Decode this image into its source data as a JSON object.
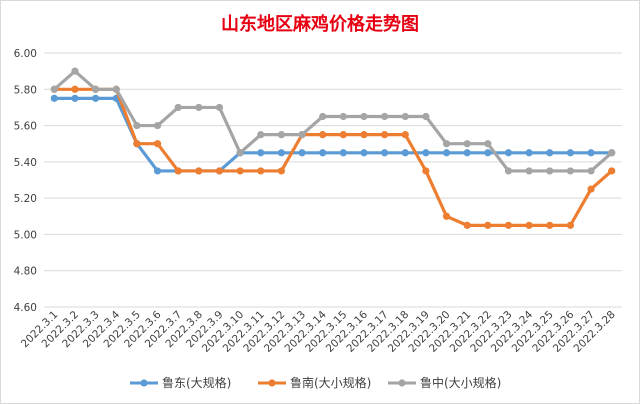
{
  "chart_data": {
    "type": "line",
    "title": "山东地区麻鸡价格走势图",
    "xlabel": "",
    "ylabel": "",
    "ylim": [
      4.6,
      6.0
    ],
    "yticks": [
      "6.00",
      "5.80",
      "5.60",
      "5.40",
      "5.20",
      "5.00",
      "4.80",
      "4.60"
    ],
    "grid": true,
    "legend": "bottom",
    "categories": [
      "2022.3.1",
      "2022.3.2",
      "2022.3.3",
      "2022.3.4",
      "2022.3.5",
      "2022.3.6",
      "2022.3.7",
      "2022.3.8",
      "2022.3.9",
      "2022.3.10",
      "2022.3.11",
      "2022.3.12",
      "2022.3.13",
      "2022.3.14",
      "2022.3.15",
      "2022.3.16",
      "2022.3.17",
      "2022.3.18",
      "2022.3.19",
      "2022.3.20",
      "2022.3.21",
      "2022.3.22",
      "2022.3.23",
      "2022.3.24",
      "2022.3.25",
      "2022.3.26",
      "2022.3.27",
      "2022.3.28"
    ],
    "series": [
      {
        "name": "鲁东(大规格)",
        "color": "#5b9bd5",
        "values": [
          5.75,
          5.75,
          5.75,
          5.75,
          5.5,
          5.35,
          5.35,
          5.35,
          5.35,
          5.45,
          5.45,
          5.45,
          5.45,
          5.45,
          5.45,
          5.45,
          5.45,
          5.45,
          5.45,
          5.45,
          5.45,
          5.45,
          5.45,
          5.45,
          5.45,
          5.45,
          5.45,
          5.45
        ]
      },
      {
        "name": "鲁南(大小规格)",
        "color": "#ed7d31",
        "values": [
          5.8,
          5.8,
          5.8,
          5.8,
          5.5,
          5.5,
          5.35,
          5.35,
          5.35,
          5.35,
          5.35,
          5.35,
          5.55,
          5.55,
          5.55,
          5.55,
          5.55,
          5.55,
          5.35,
          5.1,
          5.05,
          5.05,
          5.05,
          5.05,
          5.05,
          5.05,
          5.25,
          5.35
        ]
      },
      {
        "name": "鲁中(大小规格)",
        "color": "#a5a5a5",
        "values": [
          5.8,
          5.9,
          5.8,
          5.8,
          5.6,
          5.6,
          5.7,
          5.7,
          5.7,
          5.45,
          5.55,
          5.55,
          5.55,
          5.65,
          5.65,
          5.65,
          5.65,
          5.65,
          5.65,
          5.5,
          5.5,
          5.5,
          5.35,
          5.35,
          5.35,
          5.35,
          5.35,
          5.45
        ]
      }
    ]
  }
}
